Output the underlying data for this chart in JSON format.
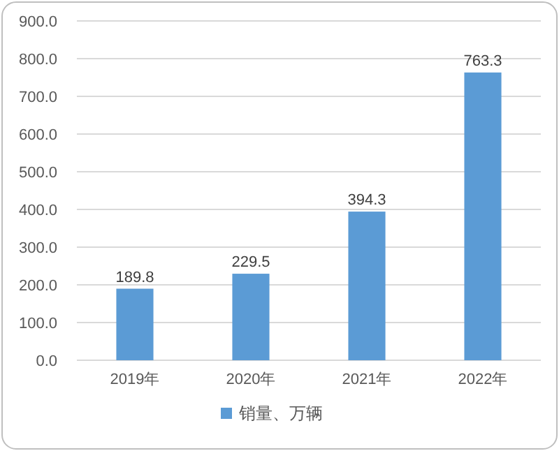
{
  "chart_data": {
    "type": "bar",
    "categories": [
      "2019年",
      "2020年",
      "2021年",
      "2022年"
    ],
    "series": [
      {
        "name": "销量、万辆",
        "color": "#5b9bd5",
        "values": [
          189.8,
          229.5,
          394.3,
          763.3
        ]
      }
    ],
    "ylim": [
      0,
      900
    ],
    "yticks": [
      {
        "value": 0,
        "label": "0.0"
      },
      {
        "value": 100,
        "label": "100.0"
      },
      {
        "value": 200,
        "label": "200.0"
      },
      {
        "value": 300,
        "label": "300.0"
      },
      {
        "value": 400,
        "label": "400.0"
      },
      {
        "value": 500,
        "label": "500.0"
      },
      {
        "value": 600,
        "label": "600.0"
      },
      {
        "value": 700,
        "label": "700.0"
      },
      {
        "value": 800,
        "label": "800.0"
      },
      {
        "value": 900,
        "label": "900.0"
      }
    ],
    "grid": "y",
    "legend": "bottom",
    "data_labels": true
  }
}
